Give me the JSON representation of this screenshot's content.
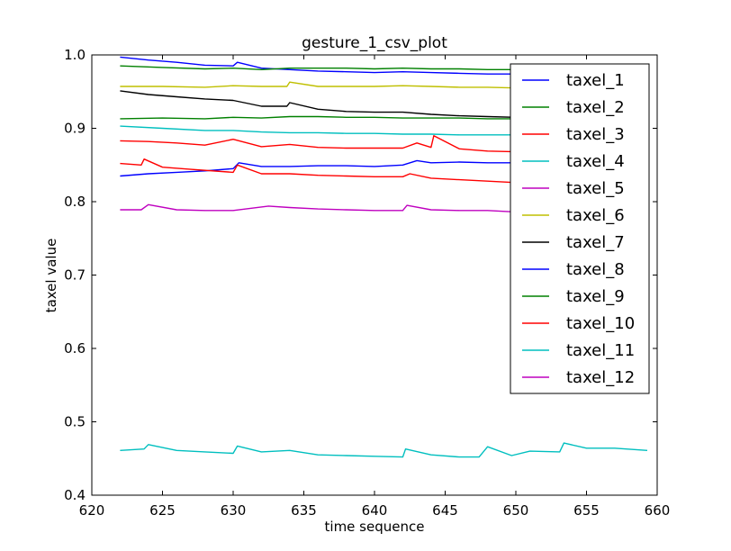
{
  "chart_data": {
    "type": "line",
    "title": "gesture_1_csv_plot",
    "xlabel": "time sequence",
    "ylabel": "taxel value",
    "xlim": [
      620,
      660
    ],
    "ylim": [
      0.4,
      1.0
    ],
    "xticks": [
      "620",
      "625",
      "630",
      "635",
      "640",
      "645",
      "650",
      "655",
      "660"
    ],
    "yticks": [
      "0.4",
      "0.5",
      "0.6",
      "0.7",
      "0.8",
      "0.9",
      "1.0"
    ],
    "grid": false,
    "legend_position": "top-right",
    "series": [
      {
        "name": "taxel_1",
        "color": "#0000ff",
        "x": [
          622,
          624,
          626,
          628,
          630,
          630.3,
          632,
          634,
          636,
          638,
          640,
          642,
          644,
          646,
          648,
          650,
          659.3
        ],
        "y": [
          0.997,
          0.993,
          0.99,
          0.986,
          0.985,
          0.99,
          0.982,
          0.98,
          0.978,
          0.977,
          0.976,
          0.977,
          0.976,
          0.975,
          0.974,
          0.974,
          0.972
        ]
      },
      {
        "name": "taxel_2",
        "color": "#008000",
        "x": [
          622,
          625,
          628,
          630,
          632,
          634,
          636,
          638,
          640,
          642,
          644,
          646,
          648,
          650,
          659.3
        ],
        "y": [
          0.985,
          0.983,
          0.981,
          0.982,
          0.98,
          0.982,
          0.982,
          0.982,
          0.981,
          0.982,
          0.981,
          0.981,
          0.98,
          0.98,
          0.978
        ]
      },
      {
        "name": "taxel_3",
        "color": "#ff0000",
        "x": [
          622,
          624,
          626,
          628,
          630,
          632,
          634,
          636,
          638,
          640,
          642,
          643,
          644,
          644.2,
          646,
          648,
          650,
          659.3
        ],
        "y": [
          0.883,
          0.882,
          0.88,
          0.877,
          0.885,
          0.875,
          0.878,
          0.874,
          0.873,
          0.873,
          0.873,
          0.88,
          0.874,
          0.89,
          0.872,
          0.869,
          0.868,
          0.867
        ]
      },
      {
        "name": "taxel_4",
        "color": "#00bfbf",
        "x": [
          622,
          625,
          628,
          630,
          632,
          634,
          636,
          638,
          640,
          642,
          644,
          646,
          648,
          650,
          659.3
        ],
        "y": [
          0.903,
          0.9,
          0.897,
          0.897,
          0.895,
          0.894,
          0.894,
          0.893,
          0.893,
          0.892,
          0.892,
          0.891,
          0.891,
          0.891,
          0.891
        ]
      },
      {
        "name": "taxel_5",
        "color": "#bf00bf",
        "x": [
          622,
          623.5,
          624,
          626,
          628,
          630,
          632.5,
          634,
          636,
          638,
          640,
          642,
          642.3,
          644,
          646,
          648,
          650,
          659.3
        ],
        "y": [
          0.789,
          0.789,
          0.796,
          0.789,
          0.788,
          0.788,
          0.794,
          0.792,
          0.79,
          0.789,
          0.788,
          0.788,
          0.795,
          0.789,
          0.788,
          0.788,
          0.786,
          0.785
        ]
      },
      {
        "name": "taxel_6",
        "color": "#bfbf00",
        "x": [
          622,
          625,
          628,
          630,
          632,
          633.8,
          634,
          636,
          638,
          640,
          642,
          644,
          646,
          648,
          650,
          659.3
        ],
        "y": [
          0.957,
          0.957,
          0.956,
          0.958,
          0.957,
          0.957,
          0.963,
          0.957,
          0.957,
          0.957,
          0.958,
          0.957,
          0.956,
          0.956,
          0.955,
          0.955
        ]
      },
      {
        "name": "taxel_7",
        "color": "#000000",
        "x": [
          622,
          624,
          626,
          628,
          630,
          632,
          633.8,
          634,
          636,
          638,
          640,
          642,
          644,
          646,
          648,
          650,
          659.3
        ],
        "y": [
          0.951,
          0.946,
          0.943,
          0.94,
          0.938,
          0.93,
          0.93,
          0.935,
          0.926,
          0.923,
          0.922,
          0.922,
          0.919,
          0.917,
          0.916,
          0.915,
          0.914
        ]
      },
      {
        "name": "taxel_8",
        "color": "#0000ff",
        "x": [
          622,
          624,
          626,
          628,
          630,
          630.4,
          632,
          634,
          636,
          638,
          640,
          642,
          643,
          644,
          646,
          648,
          650,
          659.3
        ],
        "y": [
          0.835,
          0.838,
          0.84,
          0.842,
          0.845,
          0.853,
          0.848,
          0.848,
          0.849,
          0.849,
          0.848,
          0.85,
          0.856,
          0.853,
          0.854,
          0.853,
          0.853,
          0.852
        ]
      },
      {
        "name": "taxel_9",
        "color": "#008000",
        "x": [
          622,
          625,
          628,
          630,
          632,
          634,
          636,
          638,
          640,
          642,
          644,
          646,
          648,
          650,
          659.3
        ],
        "y": [
          0.913,
          0.914,
          0.913,
          0.915,
          0.914,
          0.916,
          0.916,
          0.915,
          0.915,
          0.914,
          0.914,
          0.914,
          0.913,
          0.913,
          0.913
        ]
      },
      {
        "name": "taxel_10",
        "color": "#ff0000",
        "x": [
          622,
          623.5,
          623.7,
          625,
          627,
          630,
          630.3,
          632,
          634,
          636,
          638,
          640,
          642,
          642.5,
          644,
          646,
          648,
          650,
          659.3
        ],
        "y": [
          0.852,
          0.85,
          0.858,
          0.847,
          0.844,
          0.84,
          0.85,
          0.838,
          0.838,
          0.836,
          0.835,
          0.834,
          0.834,
          0.838,
          0.832,
          0.83,
          0.828,
          0.826,
          0.824
        ]
      },
      {
        "name": "taxel_11",
        "color": "#00bfbf",
        "x": [
          622,
          623.7,
          624,
          626,
          628,
          630,
          630.3,
          632,
          634,
          636,
          638,
          640,
          642,
          642.2,
          644,
          646,
          647.4,
          648,
          649.7,
          651,
          653.1,
          653.4,
          655,
          657,
          659.3
        ],
        "y": [
          0.461,
          0.463,
          0.469,
          0.461,
          0.459,
          0.457,
          0.467,
          0.459,
          0.461,
          0.455,
          0.454,
          0.453,
          0.452,
          0.463,
          0.455,
          0.452,
          0.452,
          0.466,
          0.454,
          0.46,
          0.459,
          0.471,
          0.464,
          0.464,
          0.461
        ]
      },
      {
        "name": "taxel_12",
        "color": "#bf00bf",
        "x": [],
        "y": []
      }
    ]
  }
}
